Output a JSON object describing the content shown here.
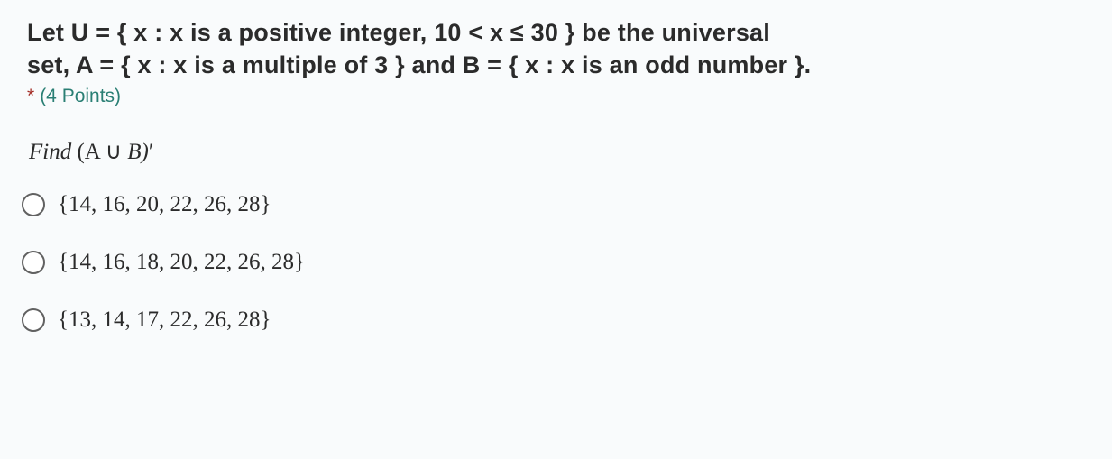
{
  "question": {
    "line1": "Let U =  { x : x is a positive integer, 10 <  x ≤ 30 } be the universal",
    "line2": "set, A = { x : x is a multiple of 3 } and B = { x : x is an odd number }.",
    "asterisk": "*",
    "points": "(4 Points)"
  },
  "instruction": {
    "find_word": "Find ",
    "expr_open": "(A ",
    "union": "∪",
    "expr_mid": "  B)",
    "prime": "′"
  },
  "options": [
    {
      "text": "{14,  16,  20,  22,  26,  28}"
    },
    {
      "text": "{14,  16,  18,  20,  22,  26,  28}"
    },
    {
      "text": "{13,  14,  17,  22,  26,  28}"
    }
  ],
  "colors": {
    "background": "#f9fbfc",
    "text": "#2b2b2b",
    "points": "#2a7f74",
    "asterisk": "#a42c25",
    "radio_border": "#616161"
  }
}
